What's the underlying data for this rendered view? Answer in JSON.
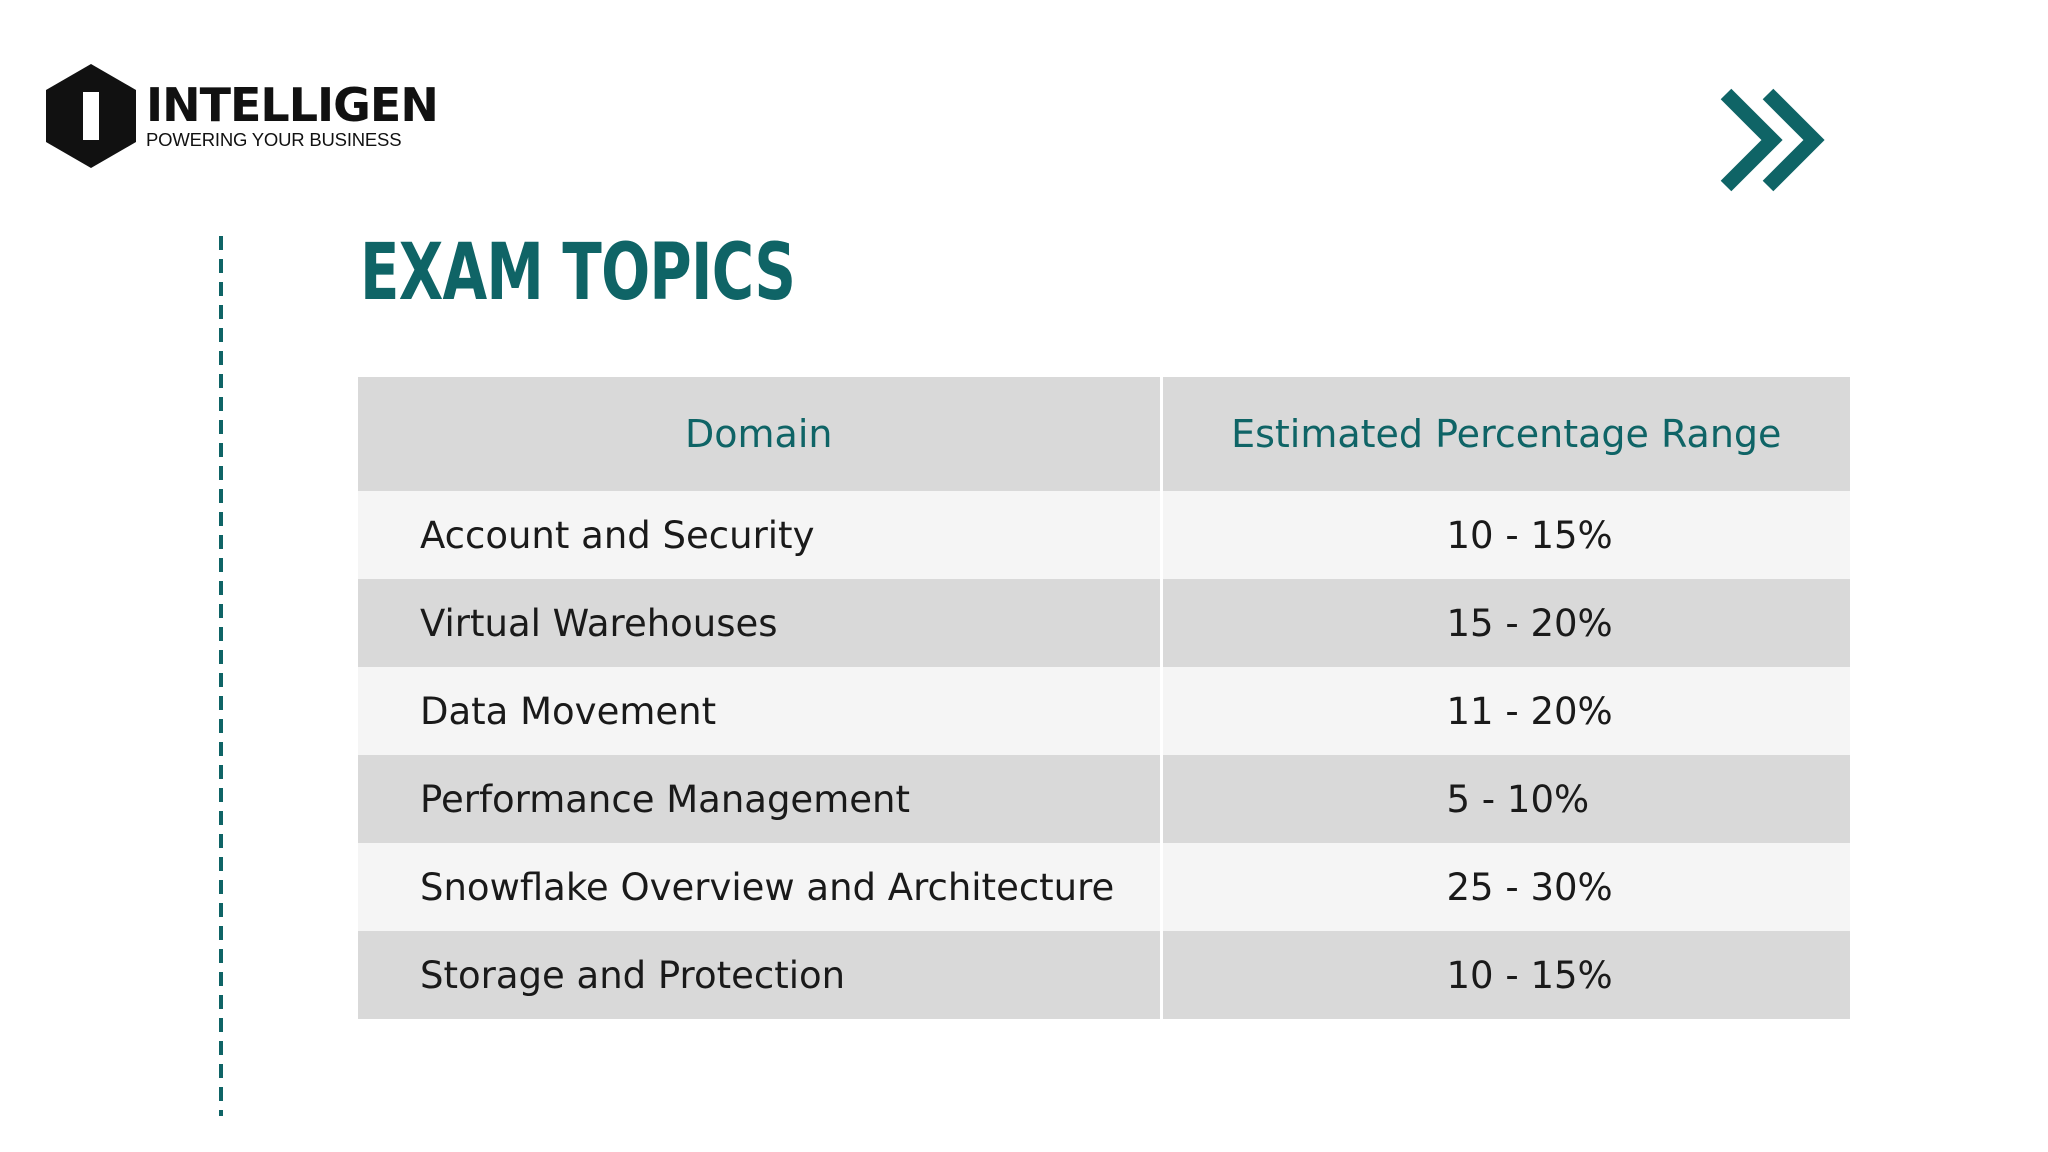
{
  "brand": {
    "initial": "I",
    "name": "INTELLIGEN",
    "tagline": "POWERING YOUR BUSINESS"
  },
  "title": "EXAM TOPICS",
  "table": {
    "headers": [
      "Domain",
      "Estimated Percentage Range"
    ],
    "rows": [
      {
        "domain": "Account and Security",
        "range": "10 - 15%"
      },
      {
        "domain": "Virtual Warehouses",
        "range": "15 - 20%"
      },
      {
        "domain": "Data Movement",
        "range": "11 - 20%"
      },
      {
        "domain": "Performance Management",
        "range": "5 - 10%"
      },
      {
        "domain": "Snowflake Overview and Architecture",
        "range": "25 - 30%"
      },
      {
        "domain": "Storage and Protection",
        "range": "10 - 15%"
      }
    ]
  },
  "icons": {
    "logo": "hexagon-logo-icon",
    "decoration": "double-chevron-right-icon"
  },
  "colors": {
    "accent": "#0f6466",
    "header_bg": "#d9d9d9",
    "row_light": "#f5f5f5",
    "row_dark": "#d9d9d9",
    "text": "#1a1a1a"
  }
}
